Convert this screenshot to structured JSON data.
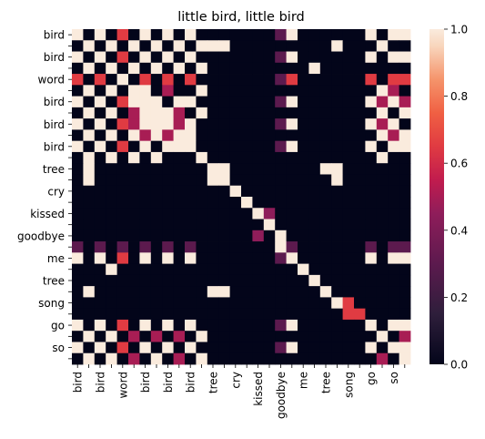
{
  "chart_data": {
    "type": "heatmap",
    "title": "little bird, little bird",
    "xlabel": "",
    "ylabel": "",
    "labels": [
      "bird",
      "",
      "bird",
      "",
      "word",
      "",
      "bird",
      "",
      "bird",
      "",
      "bird",
      "",
      "tree",
      "",
      "cry",
      "",
      "kissed",
      "",
      "goodbye",
      "",
      "me",
      "",
      "tree",
      "",
      "song",
      "",
      "go",
      "",
      "so",
      ""
    ],
    "colorbar": {
      "min": 0.0,
      "max": 1.0,
      "ticks": [
        "0.0",
        "0.2",
        "0.4",
        "0.6",
        "0.8",
        "1.0"
      ],
      "colormap": "rocket"
    },
    "matrix": [
      [
        1,
        0,
        1,
        0,
        0.65,
        0,
        1,
        0,
        1,
        0,
        1,
        0,
        0,
        0,
        0,
        0,
        0,
        0,
        0.3,
        1,
        0,
        0,
        0,
        0,
        0,
        0,
        1,
        0,
        1,
        1
      ],
      [
        0,
        1,
        0,
        1,
        0,
        1,
        0,
        1,
        0,
        1,
        0,
        1,
        1,
        1,
        0,
        0,
        0,
        0,
        0,
        0,
        0,
        0,
        0,
        1,
        0,
        0,
        0,
        1,
        0,
        0
      ],
      [
        1,
        0,
        1,
        0,
        0.65,
        0,
        1,
        0,
        1,
        0,
        1,
        0,
        0,
        0,
        0,
        0,
        0,
        0,
        0.3,
        1,
        0,
        0,
        0,
        0,
        0,
        0,
        1,
        0,
        1,
        1
      ],
      [
        0,
        1,
        0,
        1,
        0,
        1,
        0,
        1,
        0,
        1,
        0,
        1,
        0,
        0,
        0,
        0,
        0,
        0,
        0,
        0,
        0,
        1,
        0,
        0,
        0,
        0,
        0,
        0,
        0,
        0
      ],
      [
        0.65,
        0,
        0.65,
        0,
        1,
        0,
        0.65,
        0,
        0.65,
        0,
        0.65,
        0,
        0,
        0,
        0,
        0,
        0,
        0,
        0.3,
        0.65,
        0,
        0,
        0,
        0,
        0,
        0,
        0.65,
        0,
        0.65,
        0.65
      ],
      [
        0,
        1,
        0,
        1,
        0,
        1,
        1,
        0,
        0.5,
        0,
        0,
        1,
        0,
        0,
        0,
        0,
        0,
        0,
        0,
        0,
        0,
        0,
        0,
        0,
        0,
        0,
        0,
        1,
        0.5,
        0
      ],
      [
        1,
        0,
        1,
        0,
        0.65,
        1,
        1,
        1,
        0,
        1,
        1,
        0,
        0,
        0,
        0,
        0,
        0,
        0,
        0.3,
        1,
        0,
        0,
        0,
        0,
        0,
        0,
        1,
        0.5,
        1,
        0.5
      ],
      [
        0,
        1,
        0,
        1,
        0,
        0.5,
        1,
        1,
        1,
        0.5,
        0,
        1,
        0,
        0,
        0,
        0,
        0,
        0,
        0,
        0,
        0,
        0,
        0,
        0,
        0,
        0,
        0,
        1,
        0,
        1
      ],
      [
        1,
        0,
        1,
        0,
        0.65,
        0.5,
        1,
        1,
        1,
        0.5,
        1,
        0,
        0,
        0,
        0,
        0,
        0,
        0,
        0.3,
        1,
        0,
        0,
        0,
        0,
        0,
        0,
        1,
        0.5,
        1,
        0
      ],
      [
        0,
        1,
        0,
        1,
        0,
        1,
        0.5,
        1,
        0.5,
        1,
        1,
        0,
        0,
        0,
        0,
        0,
        0,
        0,
        0,
        0,
        0,
        0,
        0,
        0,
        0,
        0,
        0,
        1,
        0.5,
        1
      ],
      [
        1,
        0,
        1,
        0,
        0.65,
        0,
        1,
        0,
        1,
        1,
        1,
        0,
        0,
        0,
        0,
        0,
        0,
        0,
        0.3,
        1,
        0,
        0,
        0,
        0,
        0,
        0,
        1,
        0,
        1,
        1
      ],
      [
        0,
        1,
        0,
        1,
        0,
        1,
        0,
        1,
        0,
        0,
        0,
        1,
        0,
        0,
        0,
        0,
        0,
        0,
        0,
        0,
        0,
        0,
        0,
        0,
        0,
        0,
        0,
        1,
        0,
        0
      ],
      [
        0,
        1,
        0,
        0,
        0,
        0,
        0,
        0,
        0,
        0,
        0,
        0,
        1,
        1,
        0,
        0,
        0,
        0,
        0,
        0,
        0,
        0,
        1,
        1,
        0,
        0,
        0,
        0,
        0,
        0
      ],
      [
        0,
        1,
        0,
        0,
        0,
        0,
        0,
        0,
        0,
        0,
        0,
        0,
        1,
        1,
        0,
        0,
        0,
        0,
        0,
        0,
        0,
        0,
        0,
        1,
        0,
        0,
        0,
        0,
        0,
        0
      ],
      [
        0,
        0,
        0,
        0,
        0,
        0,
        0,
        0,
        0,
        0,
        0,
        0,
        0,
        0,
        1,
        0,
        0,
        0,
        0,
        0,
        0,
        0,
        0,
        0,
        0,
        0,
        0,
        0,
        0,
        0
      ],
      [
        0,
        0,
        0,
        0,
        0,
        0,
        0,
        0,
        0,
        0,
        0,
        0,
        0,
        0,
        0,
        1,
        0,
        0,
        0,
        0,
        0,
        0,
        0,
        0,
        0,
        0,
        0,
        0,
        0,
        0
      ],
      [
        0,
        0,
        0,
        0,
        0,
        0,
        0,
        0,
        0,
        0,
        0,
        0,
        0,
        0,
        0,
        0,
        1,
        0.45,
        0,
        0,
        0,
        0,
        0,
        0,
        0,
        0,
        0,
        0,
        0,
        0
      ],
      [
        0,
        0,
        0,
        0,
        0,
        0,
        0,
        0,
        0,
        0,
        0,
        0,
        0,
        0,
        0,
        0,
        0,
        1,
        0,
        0,
        0,
        0,
        0,
        0,
        0,
        0,
        0,
        0,
        0,
        0
      ],
      [
        0,
        0,
        0,
        0,
        0,
        0,
        0,
        0,
        0,
        0,
        0,
        0,
        0,
        0,
        0,
        0,
        0.45,
        0,
        1,
        0,
        0,
        0,
        0,
        0,
        0,
        0,
        0,
        0,
        0,
        0
      ],
      [
        0.3,
        0,
        0.3,
        0,
        0.3,
        0,
        0.3,
        0,
        0.3,
        0,
        0.3,
        0,
        0,
        0,
        0,
        0,
        0,
        0,
        1,
        0.3,
        0,
        0,
        0,
        0,
        0,
        0,
        0.3,
        0,
        0.3,
        0.3
      ],
      [
        1,
        0,
        1,
        0,
        0.65,
        0,
        1,
        0,
        1,
        0,
        1,
        0,
        0,
        0,
        0,
        0,
        0,
        0,
        0.3,
        1,
        0,
        0,
        0,
        0,
        0,
        0,
        1,
        0,
        1,
        1
      ],
      [
        0,
        0,
        0,
        1,
        0,
        0,
        0,
        0,
        0,
        0,
        0,
        0,
        0,
        0,
        0,
        0,
        0,
        0,
        0,
        0,
        1,
        0,
        0,
        0,
        0,
        0,
        0,
        0,
        0,
        0
      ],
      [
        0,
        0,
        0,
        0,
        0,
        0,
        0,
        0,
        0,
        0,
        0,
        0,
        0,
        0,
        0,
        0,
        0,
        0,
        0,
        0,
        0,
        1,
        0,
        0,
        0,
        0,
        0,
        0,
        0,
        0
      ],
      [
        0,
        1,
        0,
        0,
        0,
        0,
        0,
        0,
        0,
        0,
        0,
        0,
        1,
        1,
        0,
        0,
        0,
        0,
        0,
        0,
        0,
        0,
        1,
        0,
        0,
        0,
        0,
        0,
        0,
        0
      ],
      [
        0,
        0,
        0,
        0,
        0,
        0,
        0,
        0,
        0,
        0,
        0,
        0,
        0,
        0,
        0,
        0,
        0,
        0,
        0,
        0,
        0,
        0,
        0,
        1,
        0.65,
        0,
        0,
        0,
        0,
        0
      ],
      [
        0,
        0,
        0,
        0,
        0,
        0,
        0,
        0,
        0,
        0,
        0,
        0,
        0,
        0,
        0,
        0,
        0,
        0,
        0,
        0,
        0,
        0,
        0,
        0,
        0.65,
        0.65,
        0,
        0,
        0,
        0
      ],
      [
        1,
        0,
        1,
        0,
        0.65,
        0,
        1,
        0,
        1,
        0,
        1,
        0,
        0,
        0,
        0,
        0,
        0,
        0,
        0.3,
        1,
        0,
        0,
        0,
        0,
        0,
        0,
        1,
        0,
        1,
        1
      ],
      [
        0,
        1,
        0,
        1,
        0,
        0.5,
        0,
        0.5,
        0,
        0.5,
        0,
        1,
        0,
        0,
        0,
        0,
        0,
        0,
        0,
        0,
        0,
        0,
        0,
        0,
        0,
        0,
        0,
        1,
        0,
        0.5
      ],
      [
        1,
        0,
        1,
        0,
        0.65,
        0,
        1,
        0,
        1,
        0,
        1,
        0,
        0,
        0,
        0,
        0,
        0,
        0,
        0.3,
        1,
        0,
        0,
        0,
        0,
        0,
        0,
        1,
        0,
        1,
        1
      ],
      [
        0,
        1,
        0,
        1,
        0,
        0.5,
        0,
        1,
        0,
        0.5,
        0,
        1,
        0,
        0,
        0,
        0,
        0,
        0,
        0,
        0,
        0,
        0,
        0,
        0,
        0,
        0,
        0,
        0.5,
        0,
        1
      ]
    ]
  }
}
